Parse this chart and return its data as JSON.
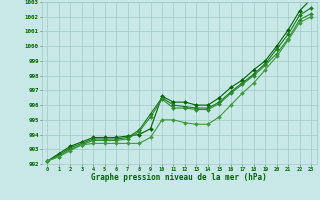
{
  "xlabel": "Graphe pression niveau de la mer (hPa)",
  "x": [
    0,
    1,
    2,
    3,
    4,
    5,
    6,
    7,
    8,
    9,
    10,
    11,
    12,
    13,
    14,
    15,
    16,
    17,
    18,
    19,
    20,
    21,
    22,
    23
  ],
  "series": [
    [
      992.2,
      992.7,
      993.2,
      993.5,
      993.8,
      993.8,
      993.8,
      993.9,
      994.0,
      994.4,
      996.6,
      996.2,
      996.2,
      996.0,
      996.0,
      996.5,
      997.2,
      997.7,
      998.4,
      999.0,
      1000.0,
      1001.1,
      1002.4,
      1003.2
    ],
    [
      992.2,
      992.6,
      993.1,
      993.4,
      993.7,
      993.7,
      993.7,
      993.8,
      994.3,
      995.4,
      996.5,
      996.0,
      995.9,
      995.8,
      995.8,
      996.2,
      996.9,
      997.5,
      998.1,
      998.8,
      999.8,
      1000.8,
      1002.1,
      1002.6
    ],
    [
      992.2,
      992.5,
      993.0,
      993.3,
      993.6,
      993.6,
      993.6,
      993.7,
      994.2,
      995.2,
      996.4,
      995.8,
      995.8,
      995.7,
      995.7,
      996.1,
      996.8,
      997.4,
      998.0,
      998.7,
      999.5,
      1000.5,
      1001.8,
      1002.2
    ],
    [
      992.2,
      992.5,
      992.9,
      993.3,
      993.4,
      993.4,
      993.4,
      993.4,
      993.4,
      993.8,
      995.0,
      995.0,
      994.8,
      994.7,
      994.7,
      995.2,
      996.0,
      996.8,
      997.5,
      998.4,
      999.3,
      1000.4,
      1001.6,
      1002.0
    ]
  ],
  "line_colors": [
    "#006400",
    "#1a7a1a",
    "#2d8b2d",
    "#3d9b3d"
  ],
  "marker": "D",
  "markersize": 2.0,
  "bg_color": "#c8e8e8",
  "grid_color": "#a0c8c8",
  "text_color": "#006400",
  "ylim": [
    992,
    1003
  ],
  "yticks": [
    992,
    993,
    994,
    995,
    996,
    997,
    998,
    999,
    1000,
    1001,
    1002,
    1003
  ],
  "xticks": [
    0,
    1,
    2,
    3,
    4,
    5,
    6,
    7,
    8,
    9,
    10,
    11,
    12,
    13,
    14,
    15,
    16,
    17,
    18,
    19,
    20,
    21,
    22,
    23
  ],
  "linewidth": 0.8
}
